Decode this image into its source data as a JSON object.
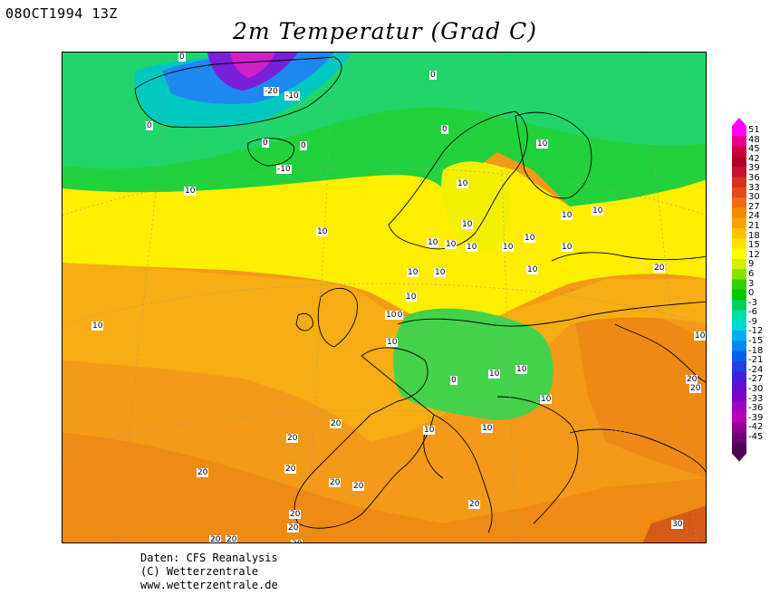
{
  "header": {
    "date": "08OCT1994 13Z",
    "title": "2m Temperatur (Grad C)"
  },
  "legend": {
    "ticks": [
      "51",
      "48",
      "45",
      "42",
      "39",
      "36",
      "33",
      "30",
      "27",
      "24",
      "21",
      "18",
      "15",
      "12",
      "9",
      "6",
      "3",
      "0",
      "-3",
      "-6",
      "-9",
      "-12",
      "-15",
      "-18",
      "-21",
      "-24",
      "-27",
      "-30",
      "-33",
      "-36",
      "-39",
      "-42",
      "-45"
    ],
    "colors": [
      "#ff00ff",
      "#e6008c",
      "#cc0040",
      "#b20026",
      "#c8102e",
      "#d7301f",
      "#e34a1f",
      "#ef6c11",
      "#f38b00",
      "#f7a400",
      "#fbc200",
      "#ffe000",
      "#ffff00",
      "#d4f000",
      "#88e000",
      "#33d000",
      "#00c800",
      "#00d060",
      "#00e0a0",
      "#00d8d8",
      "#00b0f0",
      "#0088f0",
      "#0060e8",
      "#2040e0",
      "#4020d8",
      "#6010d0",
      "#8000c8",
      "#a000c0",
      "#b000b0",
      "#900090",
      "#700070",
      "#500050"
    ]
  },
  "contour_labels": [
    "0",
    "0",
    "-20",
    "-10",
    "0",
    "0",
    "0",
    "-10",
    "0",
    "10",
    "10",
    "10",
    "10",
    "10",
    "10",
    "10",
    "10",
    "10",
    "10",
    "10",
    "10",
    "10",
    "10",
    "10",
    "10",
    "20",
    "10",
    "10",
    "10",
    "10",
    "0",
    "10",
    "10",
    "10",
    "10",
    "10",
    "20",
    "20",
    "20",
    "20",
    "20",
    "20",
    "20",
    "20",
    "20",
    "20",
    "20",
    "20",
    "30",
    "10",
    "20",
    "20",
    "10"
  ],
  "footer": {
    "line1": "Daten: CFS Reanalysis",
    "line2": "(C) Wetterzentrale",
    "line3": "www.wetterzentrale.de"
  }
}
